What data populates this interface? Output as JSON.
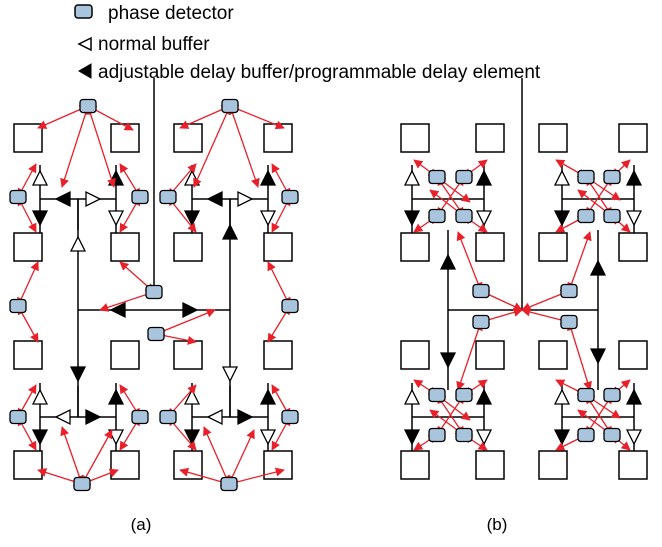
{
  "legend": {
    "phase_detector": "phase detector",
    "normal_buffer": "normal buffer",
    "adjustable_buffer": "adjustable delay buffer/programmable delay element"
  },
  "captions": {
    "a": "(a)",
    "b": "(b)"
  },
  "colors": {
    "phase_detector_fill": "#a9c4dd",
    "arrow": "#e8202a",
    "line": "#000000"
  },
  "icons": {
    "phase_detector": "rounded-rectangle",
    "normal_buffer": "hollow-triangle",
    "adjustable_buffer": "filled-triangle"
  }
}
